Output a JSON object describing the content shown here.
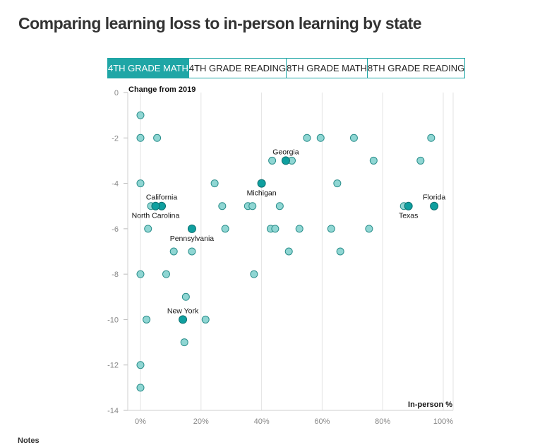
{
  "title": "Comparing learning loss to in-person learning by state",
  "tabs": [
    {
      "label": "4TH GRADE MATH",
      "active": true
    },
    {
      "label": "4TH GRADE READING",
      "active": false
    },
    {
      "label": "8TH GRADE MATH",
      "active": false
    },
    {
      "label": "8TH GRADE READING",
      "active": false
    }
  ],
  "notes_label": "Notes",
  "colors": {
    "accent": "#1fa6a6",
    "point_fill": "#8fd6d3",
    "point_stroke": "#2a8e8b",
    "highlight": "#0f9f9f"
  },
  "chart_data": {
    "type": "scatter",
    "title": "Comparing learning loss to in-person learning by state",
    "ylabel": "Change from 2019",
    "xlabel": "In-person %",
    "xlim": [
      0,
      100
    ],
    "ylim": [
      -14,
      0
    ],
    "x_ticks": [
      0,
      20,
      40,
      60,
      80,
      100
    ],
    "x_tick_labels": [
      "0%",
      "20%",
      "40%",
      "60%",
      "80%",
      "100%"
    ],
    "y_ticks": [
      0,
      -2,
      -4,
      -6,
      -8,
      -10,
      -12,
      -14
    ],
    "y_tick_labels": [
      "0",
      "-2",
      "-4",
      "-6",
      "-8",
      "-10",
      "-12",
      "-14"
    ],
    "grid": true,
    "points": [
      {
        "x": 0,
        "y": -1
      },
      {
        "x": 0,
        "y": -2
      },
      {
        "x": 5.5,
        "y": -2
      },
      {
        "x": 0,
        "y": -4
      },
      {
        "x": 3.5,
        "y": -5
      },
      {
        "x": 2.5,
        "y": -6
      },
      {
        "x": 11,
        "y": -7
      },
      {
        "x": 0,
        "y": -8
      },
      {
        "x": 8.5,
        "y": -8
      },
      {
        "x": 15,
        "y": -9
      },
      {
        "x": 2,
        "y": -10
      },
      {
        "x": 21.5,
        "y": -10
      },
      {
        "x": 14.5,
        "y": -11
      },
      {
        "x": 0,
        "y": -12
      },
      {
        "x": 0,
        "y": -13
      },
      {
        "x": 17,
        "y": -7
      },
      {
        "x": 24.5,
        "y": -4
      },
      {
        "x": 27,
        "y": -5
      },
      {
        "x": 28,
        "y": -6
      },
      {
        "x": 35.5,
        "y": -5
      },
      {
        "x": 37,
        "y": -5
      },
      {
        "x": 37.5,
        "y": -8
      },
      {
        "x": 43.5,
        "y": -3
      },
      {
        "x": 50,
        "y": -3
      },
      {
        "x": 46,
        "y": -5
      },
      {
        "x": 43,
        "y": -6
      },
      {
        "x": 44.5,
        "y": -6
      },
      {
        "x": 52.5,
        "y": -6
      },
      {
        "x": 49,
        "y": -7
      },
      {
        "x": 55,
        "y": -2
      },
      {
        "x": 59.5,
        "y": -2
      },
      {
        "x": 70.5,
        "y": -2
      },
      {
        "x": 65,
        "y": -4
      },
      {
        "x": 63,
        "y": -6
      },
      {
        "x": 66,
        "y": -7
      },
      {
        "x": 77,
        "y": -3
      },
      {
        "x": 75.5,
        "y": -6
      },
      {
        "x": 87,
        "y": -5
      },
      {
        "x": 92.5,
        "y": -3
      },
      {
        "x": 96,
        "y": -2
      }
    ],
    "highlighted": [
      {
        "name": "Georgia",
        "x": 48,
        "y": -3,
        "label_pos": "above"
      },
      {
        "name": "Michigan",
        "x": 40,
        "y": -4,
        "label_pos": "below"
      },
      {
        "name": "California",
        "x": 7,
        "y": -5,
        "label_pos": "above"
      },
      {
        "name": "North Carolina",
        "x": 5,
        "y": -5,
        "label_pos": "below"
      },
      {
        "name": "Pennsylvania",
        "x": 17,
        "y": -6,
        "label_pos": "below"
      },
      {
        "name": "New York",
        "x": 14,
        "y": -10,
        "label_pos": "above"
      },
      {
        "name": "Texas",
        "x": 88.5,
        "y": -5,
        "label_pos": "below"
      },
      {
        "name": "Florida",
        "x": 97,
        "y": -5,
        "label_pos": "above"
      }
    ]
  }
}
